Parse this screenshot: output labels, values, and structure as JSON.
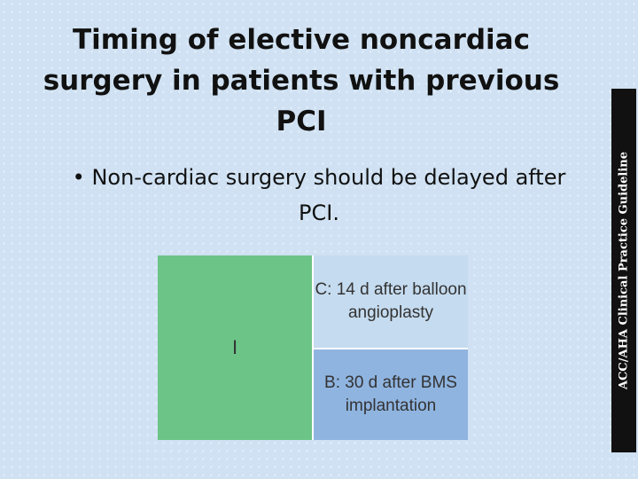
{
  "title": "Timing of elective noncardiac surgery in patients with previous PCI",
  "bullet": "Non-cardiac surgery should be delayed after PCI.",
  "sidebar": "ACC/AHA Clinical Practice Guideline",
  "table": {
    "class": "I",
    "rows": [
      "C: 14 d after balloon angioplasty",
      "B: 30 d after BMS implantation"
    ]
  }
}
